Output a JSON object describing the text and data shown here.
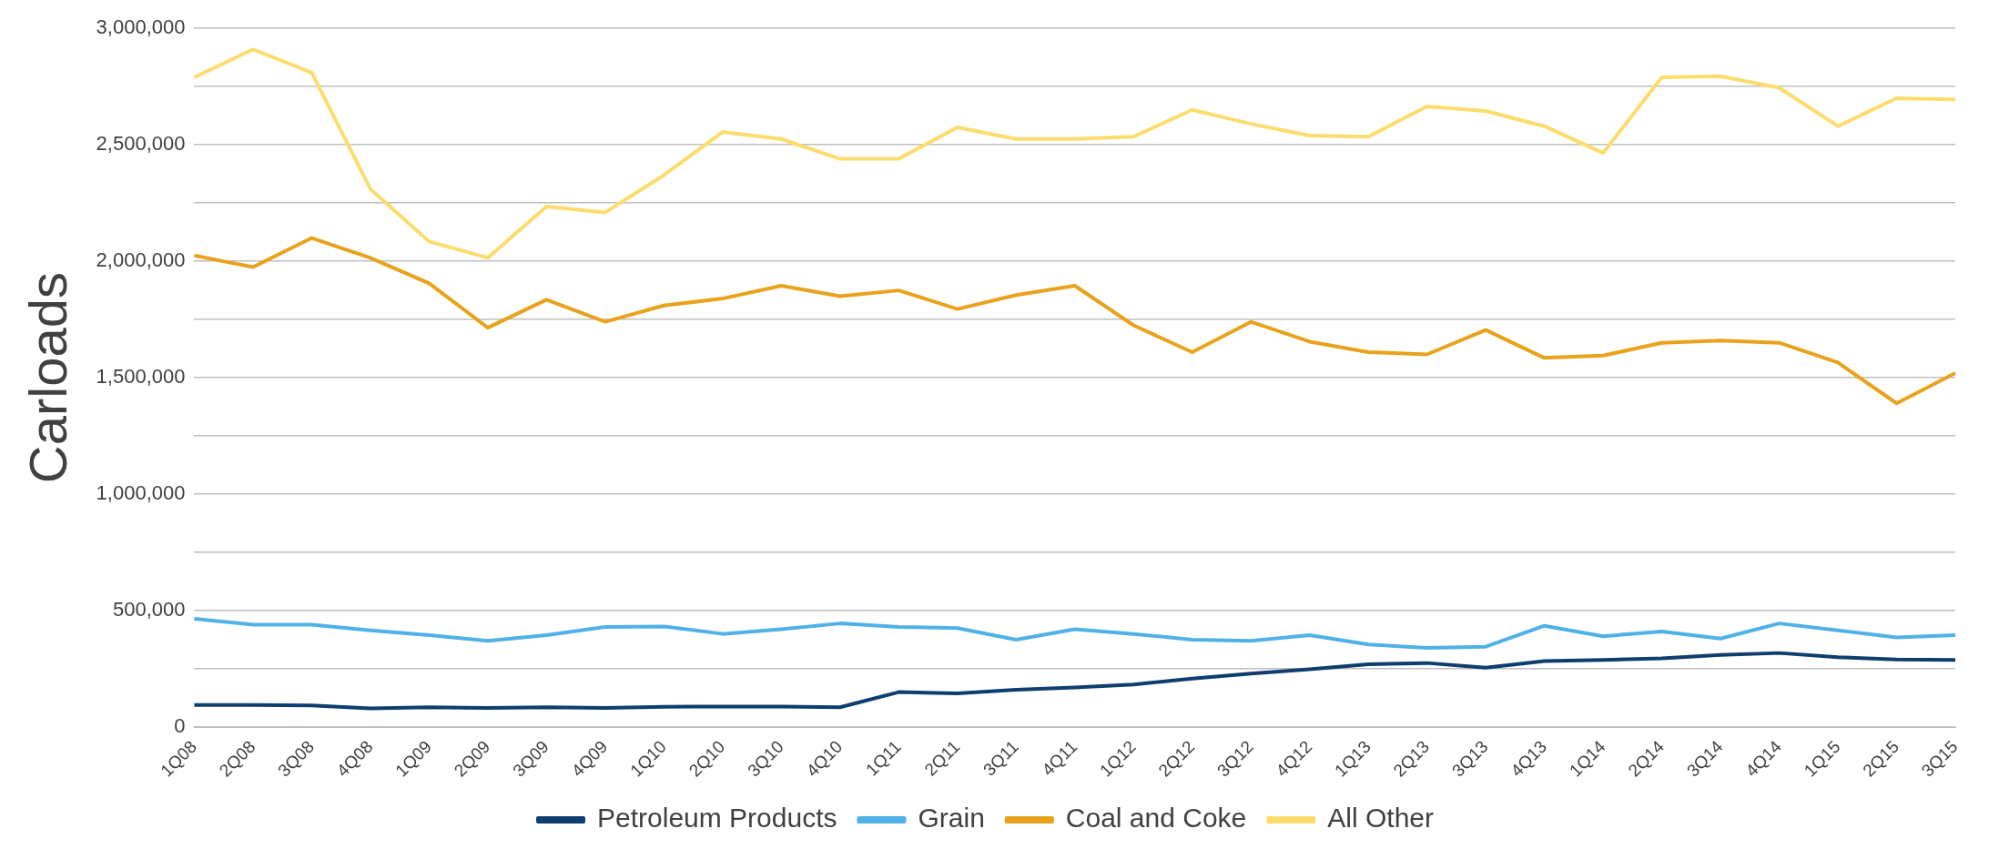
{
  "chart_data": {
    "type": "line",
    "ylabel": "Carloads",
    "categories": [
      "1Q08",
      "2Q08",
      "3Q08",
      "4Q08",
      "1Q09",
      "2Q09",
      "3Q09",
      "4Q09",
      "1Q10",
      "2Q10",
      "3Q10",
      "4Q10",
      "1Q11",
      "2Q11",
      "3Q11",
      "4Q11",
      "1Q12",
      "2Q12",
      "3Q12",
      "4Q12",
      "1Q13",
      "2Q13",
      "3Q13",
      "4Q13",
      "1Q14",
      "2Q14",
      "3Q14",
      "4Q14",
      "1Q15",
      "2Q15",
      "3Q15"
    ],
    "series": [
      {
        "name": "Petroleum Products",
        "color": "#0e3d6e",
        "values": [
          95000,
          95000,
          93000,
          80000,
          85000,
          82000,
          85000,
          82000,
          87000,
          88000,
          88000,
          85000,
          150000,
          145000,
          160000,
          170000,
          183000,
          208000,
          230000,
          248000,
          270000,
          275000,
          255000,
          283000,
          288000,
          295000,
          310000,
          318000,
          300000,
          290000,
          288000
        ]
      },
      {
        "name": "Grain",
        "color": "#4fb1e6",
        "values": [
          465000,
          440000,
          440000,
          415000,
          395000,
          370000,
          395000,
          430000,
          432000,
          400000,
          420000,
          445000,
          430000,
          425000,
          375000,
          420000,
          400000,
          375000,
          370000,
          395000,
          355000,
          340000,
          345000,
          435000,
          390000,
          410000,
          380000,
          445000,
          415000,
          385000,
          395000
        ]
      },
      {
        "name": "Coal and Coke",
        "color": "#e8a21c",
        "values": [
          2025000,
          1975000,
          2100000,
          2015000,
          1905000,
          1715000,
          1835000,
          1740000,
          1810000,
          1840000,
          1895000,
          1850000,
          1875000,
          1795000,
          1855000,
          1895000,
          1725000,
          1610000,
          1740000,
          1655000,
          1610000,
          1600000,
          1705000,
          1585000,
          1595000,
          1650000,
          1660000,
          1650000,
          1565000,
          1390000,
          1520000
        ]
      },
      {
        "name": "All Other",
        "color": "#fcdc6c",
        "values": [
          2790000,
          2910000,
          2810000,
          2310000,
          2085000,
          2015000,
          2235000,
          2210000,
          2370000,
          2555000,
          2525000,
          2440000,
          2440000,
          2575000,
          2525000,
          2525000,
          2535000,
          2650000,
          2590000,
          2540000,
          2535000,
          2665000,
          2645000,
          2580000,
          2465000,
          2790000,
          2795000,
          2745000,
          2580000,
          2700000,
          2695000
        ]
      }
    ],
    "ylim": [
      0,
      3000000
    ],
    "yticks": [
      0,
      {
        "value": 250000,
        "label": null
      },
      {
        "value": 500000,
        "label": "500,000"
      },
      {
        "value": 750000,
        "label": null
      },
      {
        "value": 1000000,
        "label": "1,000,000"
      },
      {
        "value": 1250000,
        "label": null
      },
      {
        "value": 1500000,
        "label": "1,500,000"
      },
      {
        "value": 1750000,
        "label": null
      },
      {
        "value": 2000000,
        "label": "2,000,000"
      },
      {
        "value": 2250000,
        "label": null
      },
      {
        "value": 2500000,
        "label": "2,500,000"
      },
      {
        "value": 2750000,
        "label": null
      },
      {
        "value": 3000000,
        "label": "3,000,000"
      }
    ],
    "grid": "y",
    "legend": "bottom",
    "marker": "none",
    "line_style": "solid"
  }
}
